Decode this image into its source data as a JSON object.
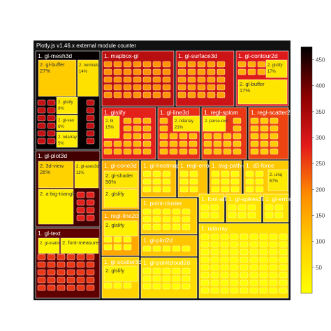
{
  "chart_data": {
    "type": "treemap",
    "title": "Plotly.js v1.46.x external module counter",
    "colorscale": [
      "#ffff00",
      "#ffd000",
      "#ff8c00",
      "#e31a1c",
      "#8b0000",
      "#000000"
    ],
    "colorbar": {
      "range": [
        0,
        475
      ],
      "ticks": [
        50,
        100,
        150,
        200,
        250,
        300,
        350,
        400,
        450
      ]
    },
    "nodes": [
      {
        "id": "mesh3d",
        "label": "1. gl-mesh3d",
        "value": 470,
        "children": [
          {
            "label": "2. gl-buffer",
            "pct": "27%",
            "value": 100
          },
          {
            "label": "2. normals",
            "pct": "14%",
            "value": 60
          },
          {
            "label": "2. glslify",
            "pct": "8%",
            "value": 45
          },
          {
            "label": "2. gl-vao",
            "pct": "6%",
            "value": 40
          },
          {
            "label": "2. ndarray",
            "pct": "5%",
            "value": 35
          }
        ]
      },
      {
        "id": "plot3d",
        "label": "1. gl-plot3d",
        "value": 430,
        "children": [
          {
            "label": "2. 3d-view",
            "pct": "26%",
            "value": 90
          },
          {
            "label": "2. gl-axes3d",
            "pct": "11%",
            "value": 50
          },
          {
            "label": "2. a-big-triangle",
            "pct": "",
            "value": 30
          }
        ]
      },
      {
        "id": "gltext",
        "label": "1. gl-text",
        "value": 410,
        "children": [
          {
            "label": "2. gl-matrix",
            "pct": "",
            "value": 20
          },
          {
            "label": "2. font-measure",
            "pct": "",
            "value": 20
          }
        ]
      },
      {
        "id": "mapbox",
        "label": "1. mapbox-gl",
        "value": 330,
        "children": []
      },
      {
        "id": "surface",
        "label": "1. gl-surface3d",
        "value": 310,
        "children": []
      },
      {
        "id": "contour",
        "label": "1. gl-contour2d",
        "value": 290,
        "children": [
          {
            "label": "2. glslify",
            "pct": "17%",
            "value": 50
          },
          {
            "label": "2. gl-buffer",
            "pct": "17%",
            "value": 50
          }
        ]
      },
      {
        "id": "glslify1",
        "label": "1. glslify",
        "value": 280,
        "children": [
          {
            "label": "2. bl",
            "pct": "15%",
            "value": 40
          }
        ]
      },
      {
        "id": "line3d",
        "label": "1. gl-line3d",
        "value": 270,
        "children": [
          {
            "label": "2. ndarray",
            "pct": "21%",
            "value": 40
          }
        ]
      },
      {
        "id": "splom",
        "label": "1. regl-splom",
        "value": 260,
        "children": [
          {
            "label": "2. parse-rect",
            "pct": "",
            "value": 20
          }
        ]
      },
      {
        "id": "scatter2d",
        "label": "1. regl-scatter2d",
        "value": 250,
        "children": []
      },
      {
        "id": "cone3d",
        "label": "1. gl-cone3d",
        "value": 140,
        "children": [
          {
            "label": "2. gl-shader",
            "pct": "50%",
            "value": 50
          },
          {
            "label": "2. glslify",
            "pct": "",
            "value": 30
          }
        ]
      },
      {
        "id": "heatmap",
        "label": "1. gl-heatmap2d",
        "value": 120,
        "children": []
      },
      {
        "id": "error2d",
        "label": "1. regl-error2d",
        "value": 115,
        "children": []
      },
      {
        "id": "svgpath",
        "label": "1. svg-path-sdf",
        "value": 110,
        "children": []
      },
      {
        "id": "d3force",
        "label": "1. d3-force",
        "value": 105,
        "children": [
          {
            "label": "2. uniq",
            "pct": "67%",
            "value": 40
          }
        ]
      },
      {
        "id": "pointclus",
        "label": "1. point-cluster",
        "value": 100,
        "children": []
      },
      {
        "id": "fontatlas",
        "label": "1. font-atlas-sdf",
        "value": 60,
        "children": []
      },
      {
        "id": "gpuenv",
        "label": "1. gl-spikes3d",
        "value": 60,
        "children": []
      },
      {
        "id": "glerrorbr",
        "label": "1. gl-error3d",
        "value": 60,
        "children": []
      },
      {
        "id": "ndarray1",
        "label": "1. ndarray",
        "value": 60,
        "children": []
      },
      {
        "id": "reglline",
        "label": "1. regl-line2d",
        "value": 150,
        "children": [
          {
            "label": "2. glslify",
            "pct": "",
            "value": 30
          }
        ]
      },
      {
        "id": "plot2d",
        "label": "1. gl-plot2d",
        "value": 110,
        "children": []
      },
      {
        "id": "scatter3d",
        "label": "1. gl-scatter3d",
        "value": 90,
        "children": [
          {
            "label": "2. glslify",
            "pct": "",
            "value": 25
          }
        ]
      },
      {
        "id": "pointcl2d",
        "label": "1. gl-pointcloud2d",
        "value": 70,
        "children": []
      }
    ]
  }
}
